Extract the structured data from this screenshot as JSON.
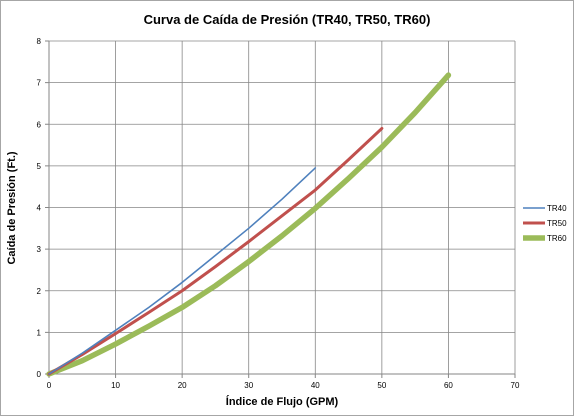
{
  "chart_data": {
    "type": "line",
    "title": "Curva de Caída de Presión (TR40, TR50, TR60)",
    "xlabel": "Índice de Flujo (GPM)",
    "ylabel": "Caída de Presión (Ft.)",
    "xlim": [
      0,
      70
    ],
    "ylim": [
      0,
      8
    ],
    "xticks": [
      "0",
      "10",
      "20",
      "30",
      "40",
      "50",
      "60",
      "70"
    ],
    "yticks": [
      "0",
      "1",
      "2",
      "3",
      "4",
      "5",
      "6",
      "7",
      "8"
    ],
    "grid": true,
    "legend_position": "right",
    "series": [
      {
        "name": "TR40",
        "color": "#4f81bd",
        "x": [
          0,
          5,
          10,
          15,
          20,
          25,
          30,
          35,
          40
        ],
        "y": [
          0,
          0.5,
          1.05,
          1.6,
          2.2,
          2.85,
          3.5,
          4.2,
          4.95
        ]
      },
      {
        "name": "TR50",
        "color": "#c0504d",
        "x": [
          0,
          5,
          10,
          15,
          20,
          25,
          30,
          35,
          40,
          45,
          50
        ],
        "y": [
          0,
          0.47,
          0.97,
          1.48,
          2.0,
          2.58,
          3.18,
          3.8,
          4.42,
          5.15,
          5.9
        ]
      },
      {
        "name": "TR60",
        "color": "#9bbb59",
        "x": [
          0,
          5,
          10,
          15,
          20,
          25,
          30,
          35,
          40,
          45,
          50,
          55,
          60
        ],
        "y": [
          0,
          0.32,
          0.72,
          1.15,
          1.6,
          2.12,
          2.7,
          3.32,
          3.98,
          4.7,
          5.45,
          6.28,
          7.18
        ]
      }
    ]
  }
}
